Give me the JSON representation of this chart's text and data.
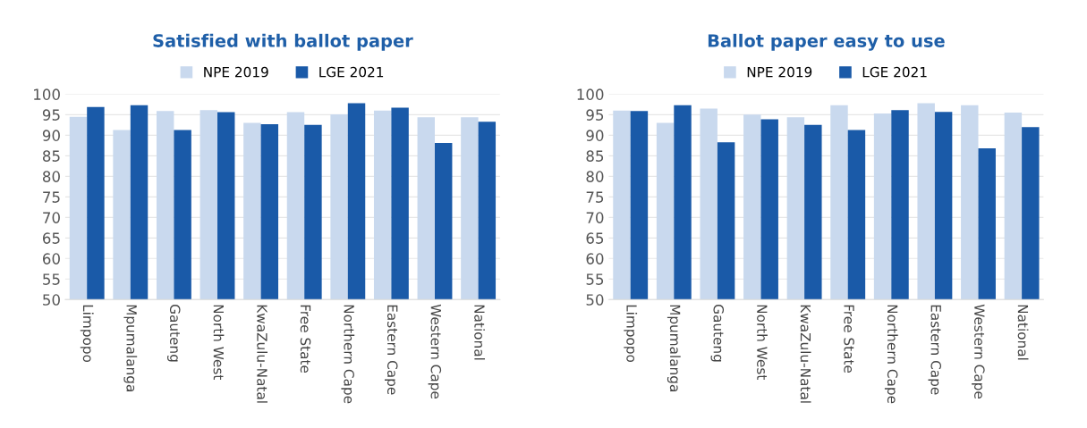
{
  "chart_data": [
    {
      "type": "bar",
      "title": "Satisfied with ballot paper",
      "categories": [
        "Limpopo",
        "Mpumalanga",
        "Gauteng",
        "North West",
        "KwaZulu-Natal",
        "Free State",
        "Northern Cape",
        "Eastern Cape",
        "Western Cape",
        "National"
      ],
      "series": [
        {
          "name": "NPE 2019",
          "color": "#c9d9ee",
          "values": [
            94.5,
            91.3,
            95.9,
            96.1,
            93.0,
            95.6,
            95.1,
            96.0,
            94.4,
            94.4
          ]
        },
        {
          "name": "LGE 2021",
          "color": "#1a5aa8",
          "values": [
            96.9,
            97.3,
            91.3,
            95.6,
            92.7,
            92.5,
            97.8,
            96.7,
            88.1,
            93.3
          ]
        }
      ],
      "ylim": [
        50,
        100
      ],
      "yticks": [
        50,
        55,
        60,
        65,
        70,
        75,
        80,
        85,
        90,
        95,
        100
      ],
      "grid": "y",
      "legend": "top"
    },
    {
      "type": "bar",
      "title": "Ballot paper easy to use",
      "categories": [
        "Limpopo",
        "Mpumalanga",
        "Gauteng",
        "North West",
        "KwaZulu-Natal",
        "Free State",
        "Northern Cape",
        "Eastern Cape",
        "Western Cape",
        "National"
      ],
      "series": [
        {
          "name": "NPE 2019",
          "color": "#c9d9ee",
          "values": [
            96.0,
            93.0,
            96.5,
            95.0,
            94.4,
            97.3,
            95.3,
            97.8,
            97.3,
            95.5
          ]
        },
        {
          "name": "LGE 2021",
          "color": "#1a5aa8",
          "values": [
            95.9,
            97.3,
            88.3,
            93.9,
            92.5,
            91.3,
            96.1,
            95.7,
            86.8,
            92.0
          ]
        }
      ],
      "ylim": [
        50,
        100
      ],
      "yticks": [
        50,
        55,
        60,
        65,
        70,
        75,
        80,
        85,
        90,
        95,
        100
      ],
      "grid": "y",
      "legend": "top"
    }
  ]
}
